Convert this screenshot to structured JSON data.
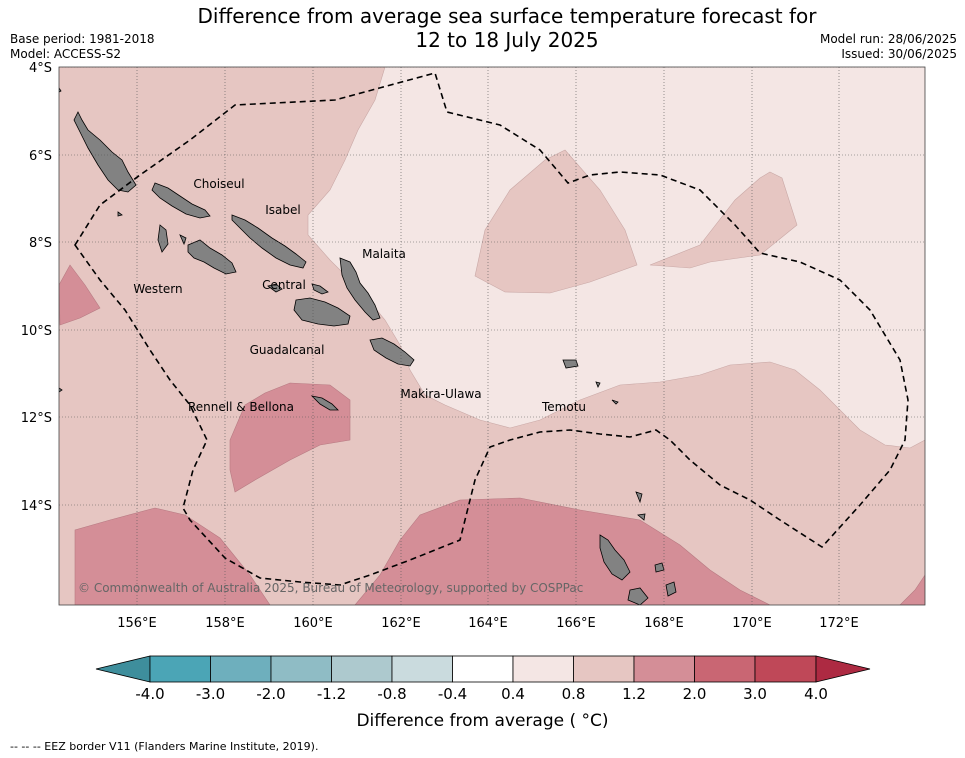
{
  "header": {
    "title_line1": "Difference from average sea surface temperature forecast for",
    "title_line2": "12 to 18 July 2025",
    "base_period": "Base period: 1981-2018",
    "model": "Model: ACCESS-S2",
    "model_run": "Model run: 28/06/2025",
    "issued": "Issued: 30/06/2025"
  },
  "map": {
    "lat_labels": [
      "4°S",
      "6°S",
      "8°S",
      "10°S",
      "12°S",
      "14°S"
    ],
    "lon_labels": [
      "156°E",
      "158°E",
      "160°E",
      "162°E",
      "164°E",
      "166°E",
      "168°E",
      "170°E",
      "172°E"
    ],
    "places": {
      "choiseul": "Choiseul",
      "isabel": "Isabel",
      "malaita": "Malaita",
      "western": "Western",
      "central": "Central",
      "guadalcanal": "Guadalcanal",
      "makira": "Makira-Ulawa",
      "rennell": "Rennell & Bellona",
      "temotu": "Temotu"
    },
    "copyright": "© Commonwealth of Australia 2025, Bureau of Meteorology, supported by COSPPac",
    "colors": {
      "anom_0_4_0_8": "#f4e6e4",
      "anom_0_8_1_2": "#e6c6c2",
      "anom_1_2_2_0": "#d48e97",
      "land": "#828282",
      "eez_border": "#000000"
    }
  },
  "colorbar": {
    "ticks": [
      "-4.0",
      "-3.0",
      "-2.0",
      "-1.2",
      "-0.8",
      "-0.4",
      "0.4",
      "0.8",
      "1.2",
      "2.0",
      "3.0",
      "4.0"
    ],
    "colors": [
      "#3e8e9c",
      "#4ba5b6",
      "#6eafbd",
      "#8fbcc5",
      "#adc9ce",
      "#cadbde",
      "#ffffff",
      "#f4e6e4",
      "#e6c6c2",
      "#d48e97",
      "#c96673",
      "#bf4858",
      "#ad2a42"
    ],
    "label": "Difference from average ( °C)"
  },
  "footnote": "--  --  -- EEZ border V11 (Flanders Marine Institute, 2019)."
}
